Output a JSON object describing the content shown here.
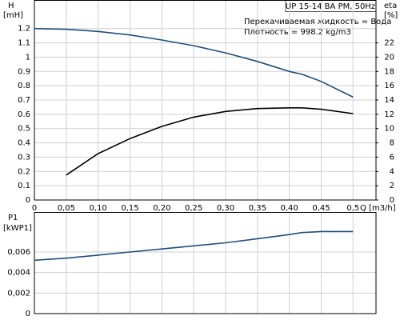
{
  "chart_data": [
    {
      "type": "line",
      "title": "UP 15-14 BA PM, 50Hz",
      "annotations": [
        "Перекачиваемая жидкость = Вода",
        "Плотность = 998.2 kg/m3"
      ],
      "ylabel": "H",
      "yunit": "[mH]",
      "y2label": "eta",
      "y2unit": "[%]",
      "xlabel": "Q [m3/h]",
      "x": [
        0,
        0.05,
        0.1,
        0.15,
        0.2,
        0.25,
        0.3,
        0.35,
        0.4,
        0.42,
        0.45,
        0.5
      ],
      "series": [
        {
          "color": "#1f4e79",
          "values": [
            1.2,
            1.195,
            1.18,
            1.155,
            1.12,
            1.08,
            1.03,
            0.97,
            0.9,
            0.88,
            0.83,
            0.72
          ]
        },
        {
          "color": "#000000",
          "axis": "y2",
          "values": [
            null,
            3.5,
            6.5,
            8.6,
            10.3,
            11.6,
            12.4,
            12.8,
            12.9,
            12.9,
            12.7,
            12.1
          ]
        }
      ],
      "xlim": [
        0,
        0.536
      ],
      "xticks": [
        0,
        {
          "value": 0.05,
          "label": "0,05"
        },
        {
          "value": 0.1,
          "label": "0,10"
        },
        {
          "value": 0.15,
          "label": "0,15"
        },
        {
          "value": 0.2,
          "label": "0,20"
        },
        {
          "value": 0.25,
          "label": "0,25"
        },
        {
          "value": 0.3,
          "label": "0,30"
        },
        {
          "value": 0.35,
          "label": "0,35"
        },
        {
          "value": 0.4,
          "label": "0,40"
        },
        {
          "value": 0.45,
          "label": "0,45"
        },
        {
          "value": 0.5,
          "label": "0,5"
        }
      ],
      "ylim": [
        0,
        1.4
      ],
      "yticks": [
        0,
        0.1,
        0.2,
        0.3,
        0.4,
        0.5,
        0.6,
        0.7,
        0.8,
        0.9,
        1.0,
        1.1,
        1.2
      ],
      "y2lim": [
        0,
        28
      ],
      "y2ticks": [
        0,
        2,
        4,
        6,
        8,
        10,
        12,
        14,
        16,
        18,
        20,
        22
      ],
      "grid": true
    },
    {
      "type": "line",
      "ylabel": "P1",
      "yunit": "[kWP1]",
      "x": [
        0,
        0.05,
        0.1,
        0.15,
        0.2,
        0.25,
        0.3,
        0.35,
        0.4,
        0.42,
        0.45,
        0.5
      ],
      "series": [
        {
          "color": "#1f4e79",
          "values": [
            0.0052,
            0.0054,
            0.0057,
            0.006,
            0.0063,
            0.0066,
            0.0069,
            0.0073,
            0.0077,
            0.0079,
            0.008,
            0.008
          ]
        }
      ],
      "xlim": [
        0,
        0.536
      ],
      "ylim": [
        0,
        0.0099
      ],
      "yticks": [
        0,
        {
          "value": 0.002,
          "label": "0,002"
        },
        {
          "value": 0.004,
          "label": "0,004"
        },
        {
          "value": 0.006,
          "label": "0,006"
        }
      ],
      "grid": true
    }
  ]
}
